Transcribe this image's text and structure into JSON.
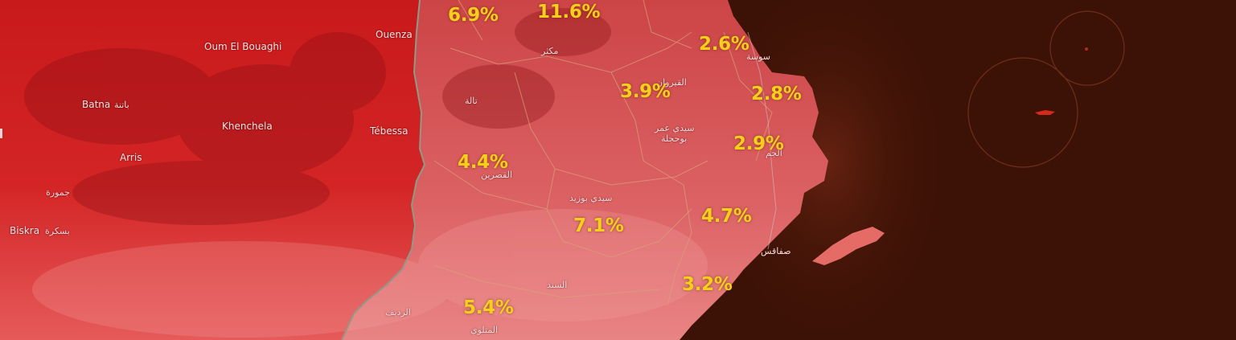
{
  "map": {
    "colors": {
      "sea": "#3d1206",
      "algeria": "#d82727",
      "tunisia": "#d9575a",
      "desert": "#ea6d6d",
      "border": "#8f9a86",
      "region_lines": "#d9a27a",
      "island": "#d42a1e",
      "value_text": "#f6cf1a"
    },
    "labels": {
      "ouenza": "Ouenza",
      "oum_el_bouaghi": "Oum El Bouaghi",
      "batna": "Batna",
      "batna_ar": "باتنة",
      "khenchela": "Khenchela",
      "tebessa": "Tébessa",
      "arris": "Arris",
      "jemora_ar": "جمورة",
      "biskra": "Biskra",
      "biskra_ar": "بسكرة",
      "thala_ar": "تالة",
      "makthar_ar": "مكثر",
      "kairouan_ar": "القيروان",
      "sousse_ar": "سوسة",
      "sidi_amor_ar": "سيدي عمر",
      "bouhajla_ar": "بوحجلة",
      "el_jem_ar": "الجم",
      "kasserine_ar": "القصرين",
      "sidi_bouzid_ar": "سيدي بوزيد",
      "sfax_ar": "صفاقس",
      "sened_ar": "السند",
      "redeyef_ar": "الرديف",
      "metlaoui_ar": "المتلوي"
    },
    "values": {
      "v1": "6.9%",
      "v2": "11.6%",
      "v3": "2.6%",
      "v4": "3.9%",
      "v5": "2.8%",
      "v6": "2.9%",
      "v7": "4.4%",
      "v8": "4.7%",
      "v9": "7.1%",
      "v10": "3.2%",
      "v11": "5.4%"
    }
  }
}
